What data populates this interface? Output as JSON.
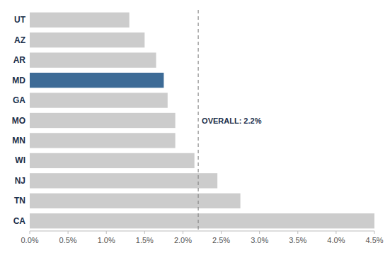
{
  "chart_data": {
    "type": "bar",
    "orientation": "horizontal",
    "categories": [
      "UT",
      "AZ",
      "AR",
      "MD",
      "GA",
      "MO",
      "MN",
      "WI",
      "NJ",
      "TN",
      "CA"
    ],
    "values": [
      1.3,
      1.5,
      1.65,
      1.75,
      1.8,
      1.9,
      1.9,
      2.15,
      2.45,
      2.75,
      4.5
    ],
    "colors": [
      "#cccccc",
      "#cccccc",
      "#cccccc",
      "#3d6b96",
      "#cccccc",
      "#cccccc",
      "#cccccc",
      "#cccccc",
      "#cccccc",
      "#cccccc",
      "#cccccc"
    ],
    "xlim": [
      0,
      4.5
    ],
    "xticks": [
      {
        "value": 0.0,
        "label": "0.0%"
      },
      {
        "value": 0.5,
        "label": "0.5%"
      },
      {
        "value": 1.0,
        "label": "1.0%"
      },
      {
        "value": 1.5,
        "label": "1.5%"
      },
      {
        "value": 2.0,
        "label": "2.0%"
      },
      {
        "value": 2.5,
        "label": "2.5%"
      },
      {
        "value": 3.0,
        "label": "3.0%"
      },
      {
        "value": 3.5,
        "label": "3.5%"
      },
      {
        "value": 4.0,
        "label": "4.0%"
      },
      {
        "value": 4.5,
        "label": "4.5%"
      }
    ],
    "reference_line": {
      "value": 2.2,
      "label": "OVERALL: 2.2%",
      "color": "#888888"
    },
    "grid": false
  }
}
